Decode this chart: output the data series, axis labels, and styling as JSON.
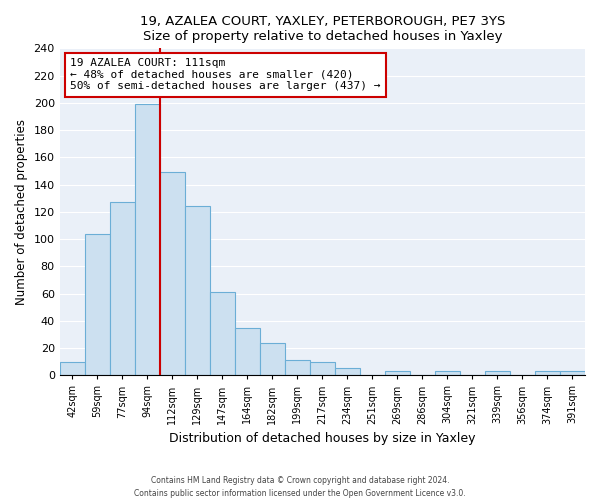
{
  "title1": "19, AZALEA COURT, YAXLEY, PETERBOROUGH, PE7 3YS",
  "title2": "Size of property relative to detached houses in Yaxley",
  "xlabel": "Distribution of detached houses by size in Yaxley",
  "ylabel": "Number of detached properties",
  "bin_labels": [
    "42sqm",
    "59sqm",
    "77sqm",
    "94sqm",
    "112sqm",
    "129sqm",
    "147sqm",
    "164sqm",
    "182sqm",
    "199sqm",
    "217sqm",
    "234sqm",
    "251sqm",
    "269sqm",
    "286sqm",
    "304sqm",
    "321sqm",
    "339sqm",
    "356sqm",
    "374sqm",
    "391sqm"
  ],
  "bar_heights": [
    10,
    104,
    127,
    199,
    149,
    124,
    61,
    35,
    24,
    11,
    10,
    5,
    0,
    3,
    0,
    3,
    0,
    3,
    0,
    3,
    3
  ],
  "bar_color": "#cce0f0",
  "bar_edge_color": "#6baed6",
  "vline_x_index": 4,
  "vline_color": "#cc0000",
  "annotation_title": "19 AZALEA COURT: 111sqm",
  "annotation_line1": "← 48% of detached houses are smaller (420)",
  "annotation_line2": "50% of semi-detached houses are larger (437) →",
  "annotation_box_facecolor": "#ffffff",
  "annotation_box_edgecolor": "#cc0000",
  "plot_bg_color": "#eaf0f8",
  "ylim": [
    0,
    240
  ],
  "yticks": [
    0,
    20,
    40,
    60,
    80,
    100,
    120,
    140,
    160,
    180,
    200,
    220,
    240
  ],
  "footer1": "Contains HM Land Registry data © Crown copyright and database right 2024.",
  "footer2": "Contains public sector information licensed under the Open Government Licence v3.0."
}
